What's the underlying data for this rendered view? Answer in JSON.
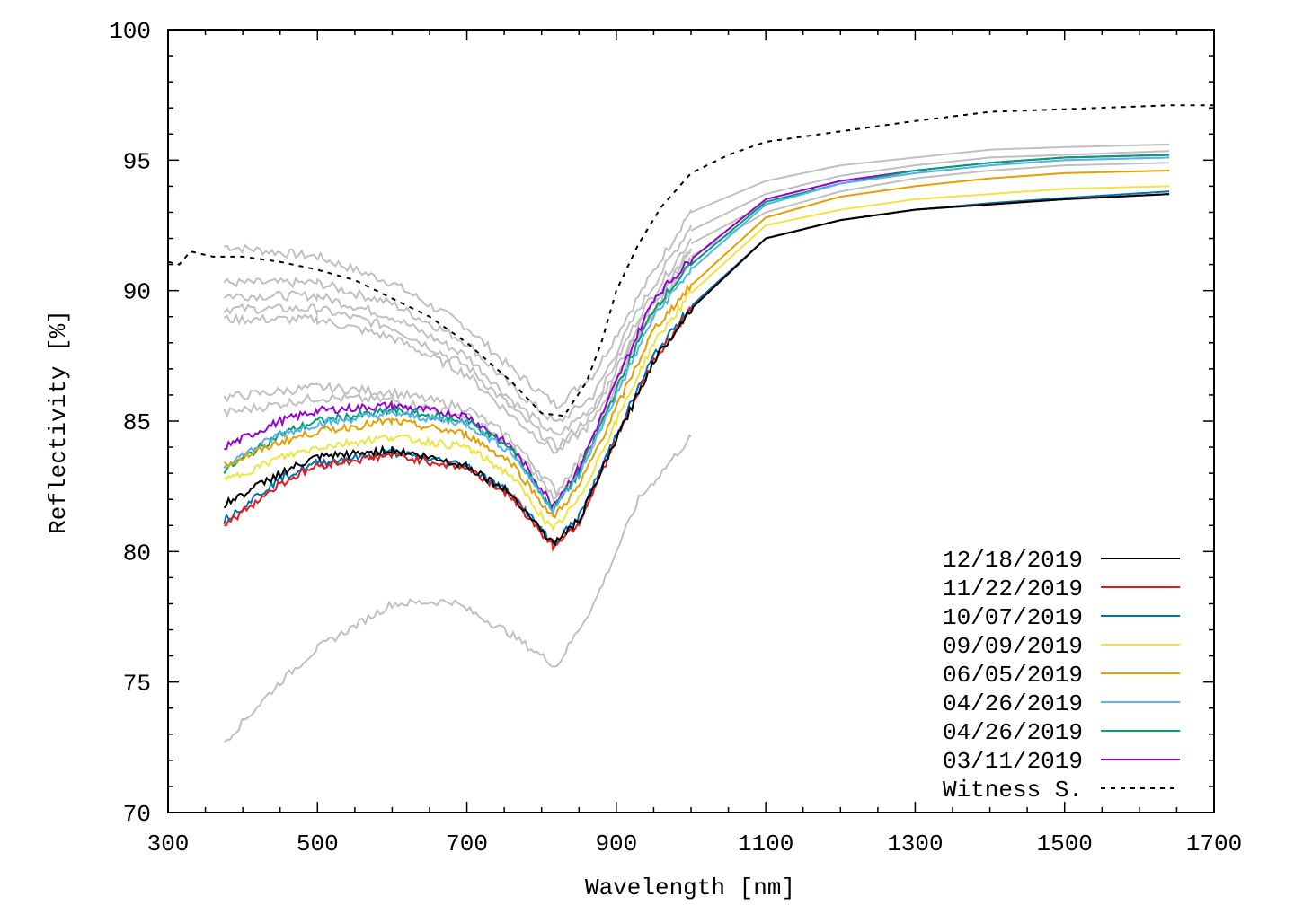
{
  "chart_data": {
    "type": "line",
    "title": "",
    "xlabel": "Wavelength [nm]",
    "ylabel": "Reflectivity [%]",
    "xlim": [
      300,
      1700
    ],
    "ylim": [
      70,
      100
    ],
    "xticks": [
      300,
      500,
      700,
      900,
      1100,
      1300,
      1500,
      1700
    ],
    "yticks": [
      70,
      75,
      80,
      85,
      90,
      95,
      100
    ],
    "xtick_labels": [
      "300",
      "500",
      "700",
      "900",
      "1100",
      "1300",
      "1500",
      "1700"
    ],
    "ytick_labels": [
      "70",
      "75",
      "80",
      "85",
      "90",
      "95",
      "100"
    ],
    "grid": false,
    "legend_position": "bottom-right",
    "x": [
      375,
      450,
      500,
      600,
      700,
      760,
      815,
      850,
      900,
      950,
      1000,
      1100,
      1200,
      1300,
      1400,
      1500,
      1640
    ],
    "series": [
      {
        "name": "12/18/2019",
        "color": "#000000",
        "values": [
          81.8,
          83.0,
          83.6,
          83.9,
          83.3,
          82.2,
          80.3,
          81.2,
          84.3,
          87.3,
          89.3,
          92.0,
          92.7,
          93.1,
          93.3,
          93.5,
          93.7
        ]
      },
      {
        "name": "11/22/2019",
        "color": "#e41a1c",
        "values": [
          81.0,
          82.6,
          83.3,
          83.7,
          83.2,
          82.1,
          80.2,
          81.1,
          84.3,
          87.3,
          89.3,
          92.0,
          92.7,
          93.1,
          93.3,
          93.5,
          93.7
        ]
      },
      {
        "name": "10/07/2019",
        "color": "#0072b2",
        "values": [
          81.2,
          82.8,
          83.4,
          83.8,
          83.3,
          82.2,
          80.3,
          81.3,
          84.5,
          87.5,
          89.4,
          92.0,
          92.7,
          93.1,
          93.35,
          93.55,
          93.8
        ]
      },
      {
        "name": "09/09/2019",
        "color": "#f0e442",
        "values": [
          82.7,
          83.6,
          84.0,
          84.4,
          84.0,
          82.9,
          80.8,
          82.0,
          85.0,
          88.0,
          89.9,
          92.5,
          93.1,
          93.5,
          93.7,
          93.9,
          94.0
        ]
      },
      {
        "name": "06/05/2019",
        "color": "#e69f00",
        "values": [
          83.3,
          84.2,
          84.6,
          85.0,
          84.5,
          83.4,
          81.3,
          82.5,
          85.5,
          88.5,
          90.2,
          92.8,
          93.6,
          94.0,
          94.3,
          94.5,
          94.6
        ]
      },
      {
        "name": "04/26/2019",
        "color": "#56b4e9",
        "values": [
          83.3,
          84.5,
          84.9,
          85.3,
          84.9,
          83.8,
          81.6,
          82.9,
          86.0,
          89.0,
          90.8,
          93.3,
          94.1,
          94.5,
          94.8,
          95.0,
          95.1
        ]
      },
      {
        "name": "04/26/2019",
        "color": "#009e73",
        "values": [
          83.1,
          84.5,
          85.0,
          85.4,
          85.0,
          83.9,
          81.6,
          83.0,
          86.2,
          89.3,
          91.0,
          93.4,
          94.1,
          94.6,
          94.9,
          95.1,
          95.2
        ]
      },
      {
        "name": "03/11/2019",
        "color": "#9400d3",
        "values": [
          84.0,
          85.0,
          85.4,
          85.6,
          85.2,
          84.0,
          81.8,
          83.2,
          86.5,
          89.7,
          91.2,
          93.5,
          94.2,
          94.6,
          94.9,
          95.1,
          95.2
        ]
      }
    ],
    "witness": {
      "name": "Witness S.",
      "color": "#000000",
      "style": "dashed",
      "x": [
        300,
        315,
        330,
        345,
        360,
        400,
        450,
        500,
        550,
        600,
        650,
        700,
        760,
        800,
        830,
        860,
        880,
        900,
        930,
        960,
        1000,
        1050,
        1100,
        1200,
        1300,
        1400,
        1500,
        1640,
        1700
      ],
      "values": [
        91.1,
        91.0,
        91.5,
        91.4,
        91.3,
        91.3,
        91.1,
        90.8,
        90.4,
        89.7,
        89.0,
        88.0,
        86.5,
        85.3,
        85.2,
        86.5,
        88.0,
        90.0,
        91.8,
        93.2,
        94.5,
        95.2,
        95.7,
        96.1,
        96.5,
        96.85,
        96.95,
        97.1,
        97.1
      ]
    },
    "reference_curves_gray": {
      "color": "#c0c0c0",
      "vis_x": [
        375,
        500,
        600,
        700,
        760,
        820,
        870,
        930,
        1000
      ],
      "vis": [
        [
          91.7,
          91.3,
          90.3,
          88.6,
          87.0,
          85.6,
          86.8,
          89.8,
          93.1
        ],
        [
          90.3,
          90.3,
          89.5,
          88.0,
          86.3,
          84.9,
          86.0,
          89.3,
          92.5
        ],
        [
          89.8,
          89.8,
          89.0,
          87.5,
          85.8,
          84.4,
          85.6,
          89.0,
          92.0
        ],
        [
          89.3,
          89.3,
          88.6,
          87.1,
          85.5,
          84.0,
          85.3,
          88.7,
          91.6
        ],
        [
          88.9,
          88.9,
          88.2,
          86.8,
          85.2,
          83.8,
          85.0,
          88.4,
          91.2
        ],
        [
          85.9,
          86.3,
          86.1,
          85.5,
          84.3,
          82.3,
          84.3,
          88.6,
          91.6
        ],
        [
          85.3,
          85.9,
          85.8,
          85.2,
          84.0,
          82.0,
          84.0,
          88.3,
          91.2
        ]
      ],
      "low_x": [
        375,
        450,
        500,
        600,
        680,
        750,
        820,
        870,
        930,
        1000
      ],
      "low": [
        72.7,
        75.0,
        76.3,
        78.0,
        78.1,
        77.0,
        75.6,
        78.0,
        82.0,
        84.4
      ],
      "nir_x": [
        1000,
        1100,
        1200,
        1300,
        1400,
        1500,
        1640
      ],
      "nir": [
        [
          93.0,
          94.2,
          94.8,
          95.1,
          95.4,
          95.5,
          95.6
        ],
        [
          92.3,
          93.7,
          94.4,
          94.8,
          95.1,
          95.2,
          95.35
        ],
        [
          91.8,
          93.3,
          94.1,
          94.5,
          94.8,
          95.0,
          95.1
        ],
        [
          91.3,
          93.0,
          93.8,
          94.3,
          94.6,
          94.8,
          94.9
        ]
      ]
    }
  }
}
